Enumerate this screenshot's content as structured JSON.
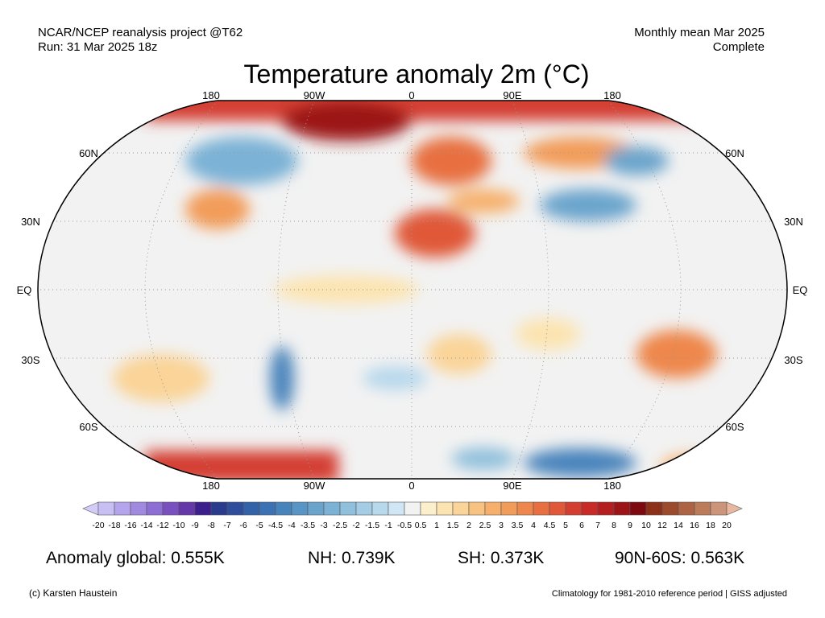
{
  "header": {
    "left": [
      "NCAR/NCEP reanalysis project @T62",
      "Run: 31 Mar 2025 18z"
    ],
    "right": [
      "Monthly mean Mar 2025",
      "Complete"
    ],
    "title": "Temperature anomaly 2m (°C)"
  },
  "map": {
    "lon_labels": [
      "180",
      "90W",
      "0",
      "90E",
      "180"
    ],
    "lat_labels": [
      "60N",
      "30N",
      "EQ",
      "30S",
      "60S"
    ]
  },
  "colorbar": {
    "labels": [
      "-20",
      "-18",
      "-16",
      "-14",
      "-12",
      "-10",
      "-9",
      "-8",
      "-7",
      "-6",
      "-5",
      "-4.5",
      "-4",
      "-3.5",
      "-3",
      "-2.5",
      "-2",
      "-1.5",
      "-1",
      "-0.5",
      "0.5",
      "1",
      "1.5",
      "2",
      "2.5",
      "3",
      "3.5",
      "4",
      "4.5",
      "5",
      "6",
      "7",
      "8",
      "9",
      "10",
      "12",
      "14",
      "16",
      "18",
      "20"
    ],
    "colors": [
      "#d4ccf8",
      "#c8c0f4",
      "#b4a4ec",
      "#a08ae0",
      "#8c6ed4",
      "#7850c0",
      "#6438a8",
      "#3c1e8c",
      "#2a3a8c",
      "#2e4e9c",
      "#3462a8",
      "#3c72b4",
      "#4884bc",
      "#5894c4",
      "#6aa4cc",
      "#7cb2d6",
      "#90c0dc",
      "#a4cce4",
      "#b8d8ec",
      "#d0e6f4",
      "#f2f2f2",
      "#fcefcc",
      "#fce4b0",
      "#fad498",
      "#f8c280",
      "#f6b06c",
      "#f29c5a",
      "#ee874c",
      "#e87040",
      "#e05838",
      "#d43e30",
      "#c82a28",
      "#b41e20",
      "#9c1418",
      "#7c0a10",
      "#8c3018",
      "#9c4a2c",
      "#ac6444",
      "#bc7c5c",
      "#cc9478",
      "#e8b8a0"
    ]
  },
  "stats": [
    "Anomaly global: 0.555K",
    "NH: 0.739K",
    "SH: 0.373K",
    "90N-60S: 0.563K"
  ],
  "footer": {
    "left": "(c) Karsten Haustein",
    "right": "Climatology for 1981-2010 reference period | GISS adjusted"
  }
}
